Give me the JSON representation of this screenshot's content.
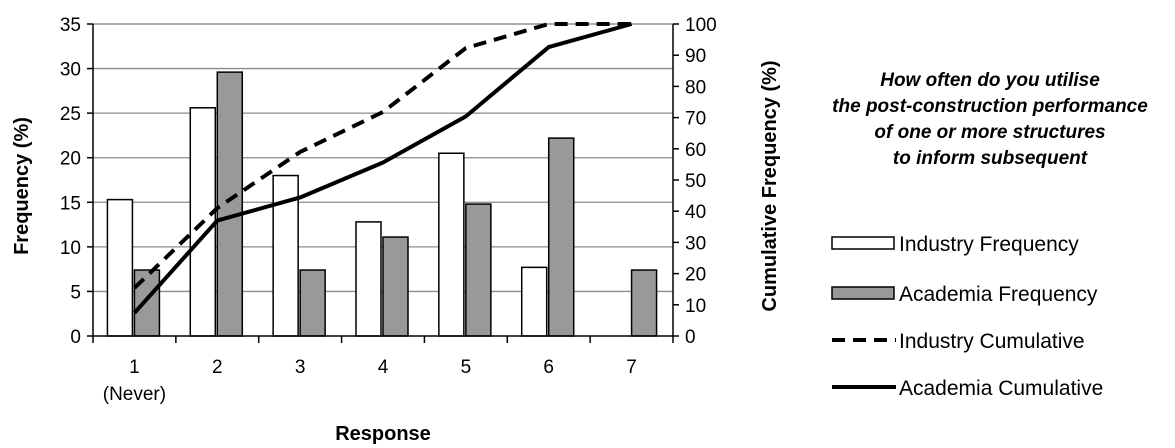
{
  "chart_data": {
    "type": "bar",
    "x_categories": [
      {
        "line1": "1",
        "line2": "(Never)"
      },
      {
        "line1": "2",
        "line2": ""
      },
      {
        "line1": "3",
        "line2": ""
      },
      {
        "line1": "4",
        "line2": ""
      },
      {
        "line1": "5",
        "line2": ""
      },
      {
        "line1": "6",
        "line2": ""
      },
      {
        "line1": "7",
        "line2": ""
      }
    ],
    "xlabel": "Response",
    "ylabel_left": "Frequency (%)",
    "ylabel_right": "Cumulative Frequency (%)",
    "ylim_left": [
      0,
      35
    ],
    "yticks_left": [
      "0",
      "5",
      "10",
      "15",
      "20",
      "25",
      "30",
      "35"
    ],
    "ylim_right": [
      0,
      100
    ],
    "yticks_right": [
      "0",
      "10",
      "20",
      "30",
      "40",
      "50",
      "60",
      "70",
      "80",
      "90",
      "100"
    ],
    "grid": true,
    "series": [
      {
        "name": "Industry Frequency",
        "kind": "bar",
        "axis": "left",
        "fill": "#ffffff",
        "values": [
          15.3,
          25.6,
          18.0,
          12.8,
          20.5,
          7.7,
          0
        ]
      },
      {
        "name": "Academia Frequency",
        "kind": "bar",
        "axis": "left",
        "fill": "#999999",
        "values": [
          7.4,
          29.6,
          7.4,
          11.1,
          14.8,
          22.2,
          7.4
        ]
      },
      {
        "name": "Industry Cumulative",
        "kind": "line",
        "axis": "right",
        "dash": true,
        "values": [
          15.4,
          41.0,
          59.0,
          71.8,
          92.3,
          100,
          100
        ]
      },
      {
        "name": "Academia Cumulative",
        "kind": "line",
        "axis": "right",
        "dash": false,
        "values": [
          7.4,
          37.0,
          44.4,
          55.6,
          70.4,
          92.6,
          100
        ]
      }
    ],
    "legend_position": "right",
    "annotation": "How often do you utilise the post-construction performance of one or more structures to inform subsequent designs?"
  }
}
